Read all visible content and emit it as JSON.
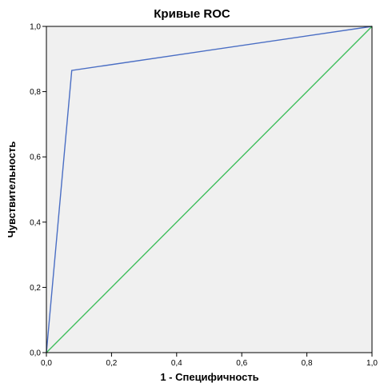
{
  "chart_data": {
    "type": "line",
    "title": "Кривые ROC",
    "xlabel": "1 - Специфичность",
    "ylabel": "Чувствительность",
    "xlim": [
      0,
      1
    ],
    "ylim": [
      0,
      1
    ],
    "x_ticks": [
      "0,0",
      "0,2",
      "0,4",
      "0,6",
      "0,8",
      "1,0"
    ],
    "y_ticks": [
      "0,0",
      "0,2",
      "0,4",
      "0,6",
      "0,8",
      "1,0"
    ],
    "grid": false,
    "background_color": "#f0f0f0",
    "series": [
      {
        "color": "#4a6ec4",
        "points": [
          [
            0.0,
            0.0
          ],
          [
            0.078,
            0.865
          ],
          [
            1.0,
            1.0
          ]
        ]
      },
      {
        "color": "#3fbe5c",
        "points": [
          [
            0.0,
            0.0
          ],
          [
            1.0,
            1.0
          ]
        ]
      }
    ]
  }
}
